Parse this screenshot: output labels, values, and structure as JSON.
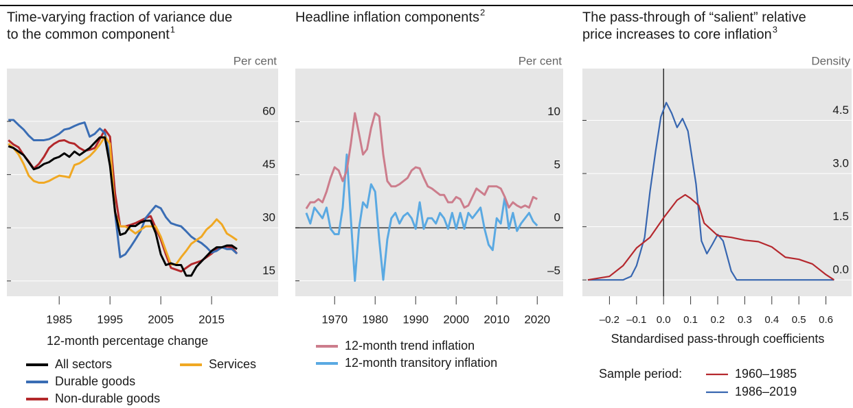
{
  "chart_data": [
    {
      "type": "line",
      "title": [
        "Time-varying fraction of variance due",
        "to the common component"
      ],
      "footnote_mark": "1",
      "unit_label": "Per cent",
      "xlabel": "12-month percentage change",
      "x": [
        1975,
        1976,
        1977,
        1978,
        1979,
        1980,
        1981,
        1982,
        1983,
        1984,
        1985,
        1986,
        1987,
        1988,
        1989,
        1990,
        1991,
        1992,
        1993,
        1994,
        1995,
        1996,
        1997,
        1998,
        1999,
        2000,
        2001,
        2002,
        2003,
        2004,
        2005,
        2006,
        2007,
        2008,
        2009,
        2010,
        2011,
        2012,
        2013,
        2014,
        2015,
        2016,
        2017,
        2018,
        2019,
        2020
      ],
      "xlim": [
        1974.7,
        2028.1
      ],
      "xticks": [
        1985,
        1995,
        2005,
        2015
      ],
      "ylim": [
        10.7,
        74.9
      ],
      "yticks": [
        15,
        30,
        45,
        60
      ],
      "grid": true,
      "series": [
        {
          "name": "All sectors",
          "color": "#000000",
          "values": [
            53,
            52.5,
            51.5,
            50.5,
            48.5,
            46.5,
            47,
            48,
            48.5,
            49.5,
            50,
            51,
            50,
            51.5,
            50.5,
            51.5,
            52.5,
            54,
            55.5,
            55.5,
            47.5,
            34.5,
            28,
            28.5,
            30.5,
            30.5,
            31.5,
            32,
            32,
            28.5,
            22.5,
            19.5,
            20,
            19.5,
            19.5,
            16.5,
            16.5,
            19,
            20.5,
            22,
            23.5,
            24.5,
            24.5,
            25,
            25,
            24
          ]
        },
        {
          "name": "Services",
          "color": "#f0a823",
          "values": [
            53.7,
            52.5,
            50.7,
            48,
            44.7,
            43.2,
            42.7,
            42.7,
            43.2,
            44,
            44.7,
            44.5,
            44.2,
            47.7,
            48.2,
            49.2,
            50.2,
            51.7,
            53.5,
            55.7,
            53.7,
            34.2,
            30.4,
            30.4,
            29.5,
            28.4,
            29.4,
            30.4,
            30.4,
            30.4,
            27.5,
            23.5,
            19.7,
            19.7,
            21.7,
            23.5,
            25.5,
            26.5,
            27.5,
            29.5,
            30.7,
            32.4,
            31,
            28.4,
            27.5,
            26.5
          ]
        },
        {
          "name": "Durable goods",
          "color": "#3a6db4",
          "values": [
            60.4,
            60.4,
            59,
            57.7,
            56,
            54.7,
            54.7,
            54.7,
            55,
            55.7,
            56.5,
            57.7,
            58,
            58.7,
            59.3,
            59.7,
            55.7,
            56.5,
            58,
            56.7,
            50,
            34,
            21.7,
            22.5,
            24.5,
            26.7,
            29,
            32.7,
            34.5,
            36.2,
            35.5,
            33,
            31.3,
            30.8,
            30.4,
            29,
            27.5,
            26.5,
            25.7,
            24.5,
            23,
            23.5,
            24.5,
            24,
            24,
            22.7
          ]
        },
        {
          "name": "Non-durable goods",
          "color": "#b3282b",
          "values": [
            54.7,
            53.5,
            52.7,
            50.5,
            48.7,
            46.7,
            48,
            50,
            52.5,
            53.7,
            54.5,
            54.7,
            54,
            53.7,
            52.5,
            51.7,
            52,
            52.5,
            55,
            57.7,
            55.7,
            39.7,
            30.4,
            30.4,
            30.8,
            31.3,
            32,
            32.7,
            33.3,
            30,
            26.7,
            22.5,
            18.7,
            18.2,
            17.7,
            18.7,
            19.7,
            20.2,
            20.7,
            21.7,
            22.7,
            24,
            24.5,
            24.7,
            24.5,
            22.7
          ]
        }
      ]
    },
    {
      "type": "line",
      "title": [
        "Headline inflation components"
      ],
      "footnote_mark": "2",
      "unit_label": "Per cent",
      "x": [
        1963,
        1964,
        1965,
        1966,
        1967,
        1968,
        1969,
        1970,
        1971,
        1972,
        1973,
        1974,
        1975,
        1976,
        1977,
        1978,
        1979,
        1980,
        1981,
        1982,
        1983,
        1984,
        1985,
        1986,
        1987,
        1988,
        1989,
        1990,
        1991,
        1992,
        1993,
        1994,
        1995,
        1996,
        1997,
        1998,
        1999,
        2000,
        2001,
        2002,
        2003,
        2004,
        2005,
        2006,
        2007,
        2008,
        2009,
        2010,
        2011,
        2012,
        2013,
        2014,
        2015,
        2016,
        2017,
        2018,
        2019,
        2020
      ],
      "xlim": [
        1960.3,
        2026.4
      ],
      "xticks": [
        1970,
        1980,
        1990,
        2000,
        2010,
        2020
      ],
      "ylim": [
        -6.45,
        15
      ],
      "yticks": [
        {
          "value": -5,
          "label": "–5"
        },
        0,
        5,
        10
      ],
      "grid": true,
      "zero_line": "y",
      "series": [
        {
          "name": "12-month trend inflation",
          "color": "#cc7d8c",
          "values": [
            1.8,
            2.4,
            2.4,
            2.7,
            2.4,
            3.4,
            4.7,
            5.7,
            5.4,
            4.4,
            5.4,
            7.9,
            10.8,
            8.9,
            6.9,
            7.4,
            9.4,
            10.8,
            10.5,
            6.9,
            4.4,
            3.9,
            3.9,
            4.1,
            4.4,
            4.7,
            5.4,
            5.7,
            5.6,
            4.7,
            3.9,
            3.7,
            3.4,
            3.1,
            3.1,
            2.4,
            2.4,
            2.9,
            2.7,
            1.9,
            2.1,
            2.9,
            3.7,
            3.4,
            3.1,
            3.9,
            3.9,
            3.9,
            3.7,
            2.9,
            1.9,
            2.4,
            2.1,
            1.9,
            2.1,
            1.9,
            2.9,
            2.7
          ]
        },
        {
          "name": "12-month transitory inflation",
          "color": "#5aa9e2",
          "values": [
            1.4,
            0.4,
            1.9,
            1.4,
            0.9,
            1.9,
            -0.1,
            -0.6,
            -0.6,
            1.9,
            6.9,
            0.9,
            -5,
            -0.1,
            2.4,
            1.9,
            4.1,
            3.4,
            -1.1,
            -4.9,
            -1.1,
            0.9,
            1.4,
            0.4,
            1.1,
            1.4,
            0.9,
            -0.1,
            2.4,
            -0.1,
            0.9,
            0.9,
            0.4,
            1.4,
            0.9,
            -0.1,
            1.4,
            -0.1,
            1.4,
            -0.1,
            1.4,
            0.9,
            1.4,
            1.9,
            -0.1,
            -1.6,
            -2.1,
            0.9,
            0.4,
            2.9,
            -0.1,
            1.4,
            -0.3,
            0.4,
            0.9,
            1.4,
            0.6,
            0.2
          ]
        }
      ]
    },
    {
      "type": "line",
      "title": [
        "The pass-through of “salient” relative",
        "price increases to core inflation"
      ],
      "footnote_mark": "3",
      "unit_label": "Density",
      "xlabel": "Standardised pass-through coefficients",
      "legend_title": "Sample period:",
      "xlim": [
        -0.3,
        0.695
      ],
      "xticks": [
        {
          "value": -0.2,
          "label": "–0.2"
        },
        {
          "value": -0.1,
          "label": "–0.1"
        },
        {
          "value": 0,
          "label": "0.0"
        },
        0.1,
        0.2,
        0.3,
        0.4,
        0.5,
        0.6
      ],
      "ylim": [
        -0.46,
        5.96
      ],
      "yticks": [
        {
          "value": 0,
          "label": "0.0"
        },
        1.5,
        {
          "value": 3,
          "label": "3.0"
        },
        4.5
      ],
      "grid": true,
      "zero_line": "x",
      "series": [
        {
          "name": "1960–1985",
          "color": "#b5282e",
          "x": [
            -0.28,
            -0.2,
            -0.15,
            -0.1,
            -0.05,
            0,
            0.05,
            0.08,
            0.1,
            0.13,
            0.15,
            0.2,
            0.25,
            0.3,
            0.35,
            0.4,
            0.45,
            0.5,
            0.55,
            0.6,
            0.63
          ],
          "values": [
            0,
            0.1,
            0.4,
            0.9,
            1.2,
            1.75,
            2.25,
            2.4,
            2.3,
            2.1,
            1.6,
            1.25,
            1.2,
            1.12,
            1.08,
            0.93,
            0.64,
            0.58,
            0.45,
            0.15,
            0
          ]
        },
        {
          "name": "1986–2019",
          "color": "#3766b0",
          "x": [
            -0.28,
            -0.15,
            -0.12,
            -0.1,
            -0.07,
            -0.05,
            -0.03,
            -0.01,
            0.01,
            0.03,
            0.05,
            0.07,
            0.09,
            0.12,
            0.14,
            0.16,
            0.18,
            0.2,
            0.22,
            0.25,
            0.27,
            0.63
          ],
          "values": [
            0,
            0,
            0.1,
            0.4,
            1.2,
            2.5,
            3.6,
            4.6,
            5.0,
            4.7,
            4.3,
            4.55,
            4.2,
            2.7,
            1.1,
            0.74,
            1.0,
            1.28,
            1.1,
            0.25,
            0,
            0
          ]
        }
      ]
    }
  ]
}
